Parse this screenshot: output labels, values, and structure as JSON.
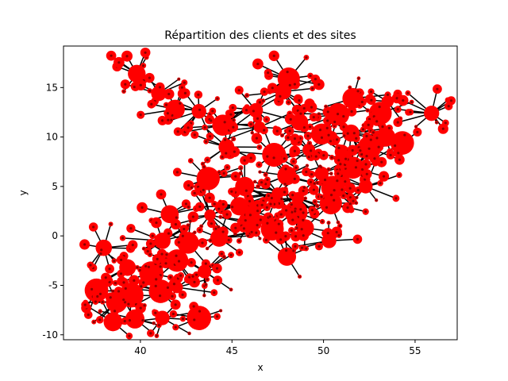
{
  "chart_data": {
    "type": "scatter",
    "title": "Répartition des clients et des sites",
    "xlabel": "x",
    "ylabel": "y",
    "xlim": [
      35.8,
      57.3
    ],
    "ylim": [
      -10.5,
      19.2
    ],
    "xticks": [
      40,
      45,
      50,
      55
    ],
    "yticks": [
      -10,
      -5,
      0,
      5,
      10,
      15
    ],
    "grid": false,
    "colors": {
      "site": "#ff0000",
      "client": "#8b0000",
      "assignment_line": "#000000",
      "highlight": "#ffa500"
    },
    "sites": [
      {
        "x": 39.8,
        "y": 16.4
      },
      {
        "x": 41.0,
        "y": 14.4
      },
      {
        "x": 41.9,
        "y": 12.8
      },
      {
        "x": 43.2,
        "y": 12.6
      },
      {
        "x": 44.5,
        "y": 11.2
      },
      {
        "x": 46.5,
        "y": 11.0
      },
      {
        "x": 48.1,
        "y": 15.9
      },
      {
        "x": 47.8,
        "y": 14.6
      },
      {
        "x": 48.7,
        "y": 11.5
      },
      {
        "x": 50.8,
        "y": 12.3
      },
      {
        "x": 51.6,
        "y": 13.9
      },
      {
        "x": 53.5,
        "y": 13.6
      },
      {
        "x": 55.9,
        "y": 12.4
      },
      {
        "x": 49.9,
        "y": 10.3
      },
      {
        "x": 51.5,
        "y": 10.4
      },
      {
        "x": 53.4,
        "y": 10.0
      },
      {
        "x": 44.7,
        "y": 9.0
      },
      {
        "x": 47.3,
        "y": 8.2
      },
      {
        "x": 49.2,
        "y": 8.7
      },
      {
        "x": 51.0,
        "y": 8.5
      },
      {
        "x": 52.5,
        "y": 8.9
      },
      {
        "x": 48.0,
        "y": 6.1
      },
      {
        "x": 49.9,
        "y": 6.3
      },
      {
        "x": 51.6,
        "y": 6.9
      },
      {
        "x": 43.7,
        "y": 5.8
      },
      {
        "x": 45.7,
        "y": 5.0
      },
      {
        "x": 47.5,
        "y": 4.3
      },
      {
        "x": 52.3,
        "y": 5.0
      },
      {
        "x": 48.6,
        "y": 3.8
      },
      {
        "x": 50.4,
        "y": 3.3
      },
      {
        "x": 41.6,
        "y": 2.2
      },
      {
        "x": 43.8,
        "y": 2.1
      },
      {
        "x": 46.0,
        "y": 1.5
      },
      {
        "x": 48.5,
        "y": 2.4
      },
      {
        "x": 44.3,
        "y": -0.2
      },
      {
        "x": 47.2,
        "y": 0.7
      },
      {
        "x": 49.0,
        "y": 0.8
      },
      {
        "x": 41.2,
        "y": -0.5
      },
      {
        "x": 42.6,
        "y": -0.7
      },
      {
        "x": 38.0,
        "y": -1.2
      },
      {
        "x": 48.0,
        "y": -2.1
      },
      {
        "x": 42.0,
        "y": -2.5
      },
      {
        "x": 39.3,
        "y": -3.2
      },
      {
        "x": 40.6,
        "y": -3.8
      },
      {
        "x": 43.5,
        "y": -3.6
      },
      {
        "x": 37.6,
        "y": -5.5
      },
      {
        "x": 39.5,
        "y": -6.0
      },
      {
        "x": 42.0,
        "y": -5.2
      },
      {
        "x": 41.1,
        "y": -5.6
      },
      {
        "x": 38.7,
        "y": -6.7
      },
      {
        "x": 39.7,
        "y": -8.4
      },
      {
        "x": 41.2,
        "y": -8.3
      },
      {
        "x": 43.2,
        "y": -8.3
      },
      {
        "x": 38.5,
        "y": -8.7
      },
      {
        "x": 46.3,
        "y": 12.7
      },
      {
        "x": 45.4,
        "y": 3.0
      },
      {
        "x": 50.5,
        "y": 4.9
      },
      {
        "x": 53.1,
        "y": 12.4
      },
      {
        "x": 54.3,
        "y": 9.4
      },
      {
        "x": 50.3,
        "y": -0.5
      }
    ]
  }
}
